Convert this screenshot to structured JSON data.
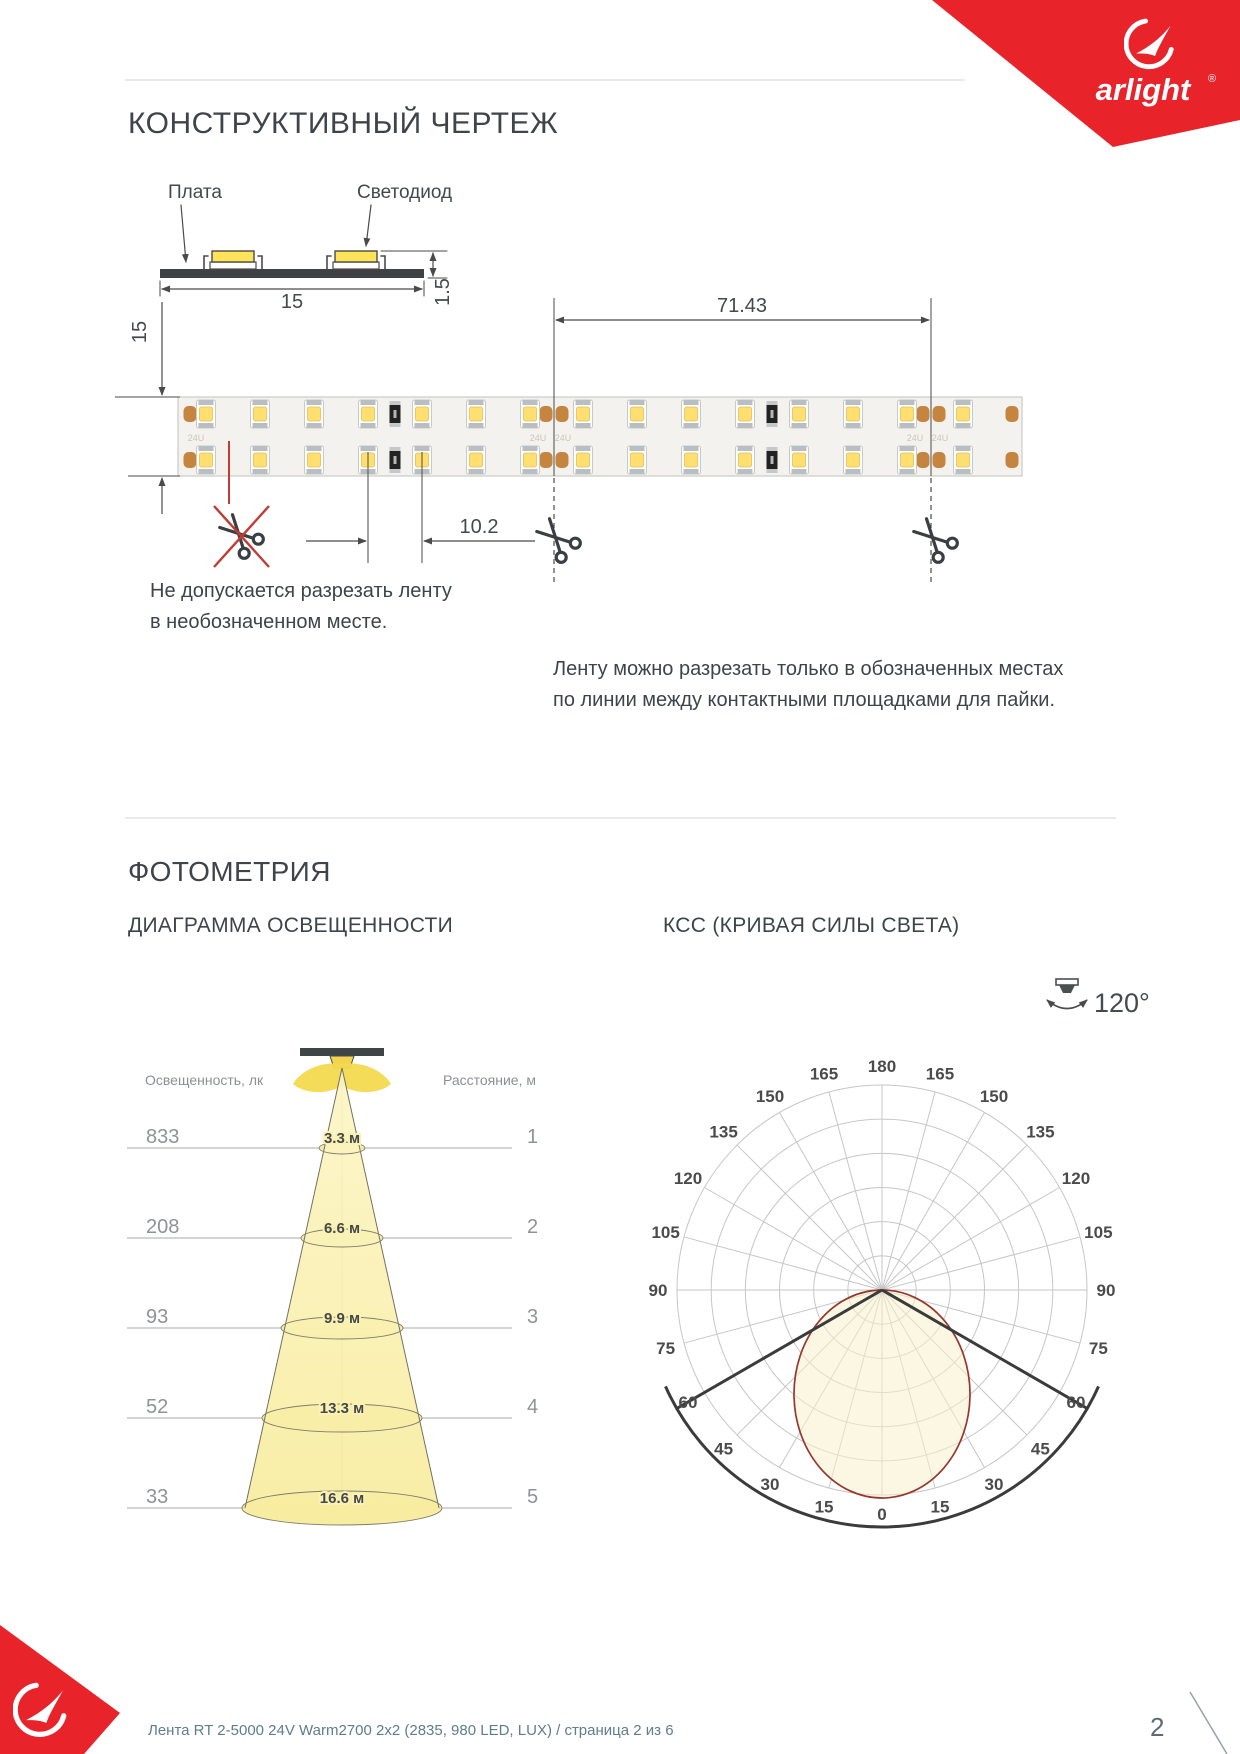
{
  "brand": {
    "logo_text": "arlight",
    "reg_mark": "®"
  },
  "construction": {
    "title": "КОНСТРУКТИВНЫЙ ЧЕРТЕЖ",
    "board_label": "Плата",
    "led_label": "Светодиод",
    "dims": {
      "board_width_mm": "15",
      "board_thickness_mm": "1.5",
      "strip_width_mm": "15",
      "cut_segment_mm": "71.43",
      "led_pitch_mm": "10.2"
    },
    "strip_print": "24U",
    "no_cut_note": [
      "Не допускается разрезать ленту",
      "в необозначенном месте."
    ],
    "cut_note": [
      "Ленту можно разрезать только в обозначенных местах",
      "по линии между контактными площадками для пайки."
    ]
  },
  "photometry": {
    "title": "ФОТОМЕТРИЯ",
    "illumination_subtitle": "ДИАГРАММА ОСВЕЩЕННОСТИ",
    "kcc_subtitle": "КСС (КРИВАЯ СИЛЫ СВЕТА)",
    "beam_angle": "120°",
    "y_axis_caption": "Освещенность, лк",
    "x_axis_caption": "Расстояние, м"
  },
  "chart_data": [
    {
      "type": "area",
      "title": "ДИАГРАММА ОСВЕЩЕННОСТИ",
      "ylabel": "Освещенность, лк",
      "xlabel": "Расстояние, м",
      "rows": [
        {
          "distance_m": "1",
          "illuminance_lx": "833",
          "beam_diameter": "3.3 м"
        },
        {
          "distance_m": "2",
          "illuminance_lx": "208",
          "beam_diameter": "6.6 м"
        },
        {
          "distance_m": "3",
          "illuminance_lx": "93",
          "beam_diameter": "9.9 м"
        },
        {
          "distance_m": "4",
          "illuminance_lx": "52",
          "beam_diameter": "13.3 м"
        },
        {
          "distance_m": "5",
          "illuminance_lx": "33",
          "beam_diameter": "16.6 м"
        }
      ]
    },
    {
      "type": "line",
      "polar": true,
      "title": "КСС (КРИВАЯ СИЛЫ СВЕТА)",
      "beam_angle_deg": 120,
      "angle_ticks_deg": [
        0,
        15,
        30,
        45,
        60,
        75,
        90,
        105,
        120,
        135,
        150,
        165,
        180
      ],
      "rings": 6,
      "curve_points": [
        {
          "angle_deg": -90,
          "rel_intensity": 0
        },
        {
          "angle_deg": -75,
          "rel_intensity": 0.26
        },
        {
          "angle_deg": -60,
          "rel_intensity": 0.5
        },
        {
          "angle_deg": -45,
          "rel_intensity": 0.72
        },
        {
          "angle_deg": -30,
          "rel_intensity": 0.88
        },
        {
          "angle_deg": -15,
          "rel_intensity": 0.97
        },
        {
          "angle_deg": 0,
          "rel_intensity": 1.0
        },
        {
          "angle_deg": 15,
          "rel_intensity": 0.97
        },
        {
          "angle_deg": 30,
          "rel_intensity": 0.88
        },
        {
          "angle_deg": 45,
          "rel_intensity": 0.72
        },
        {
          "angle_deg": 60,
          "rel_intensity": 0.5
        },
        {
          "angle_deg": 75,
          "rel_intensity": 0.26
        },
        {
          "angle_deg": 90,
          "rel_intensity": 0
        }
      ]
    }
  ],
  "footer": {
    "text": "Лента RT 2-5000 24V Warm2700 2x2 (2835, 980 LED, LUX) / страница 2 из 6",
    "page_number": "2"
  }
}
